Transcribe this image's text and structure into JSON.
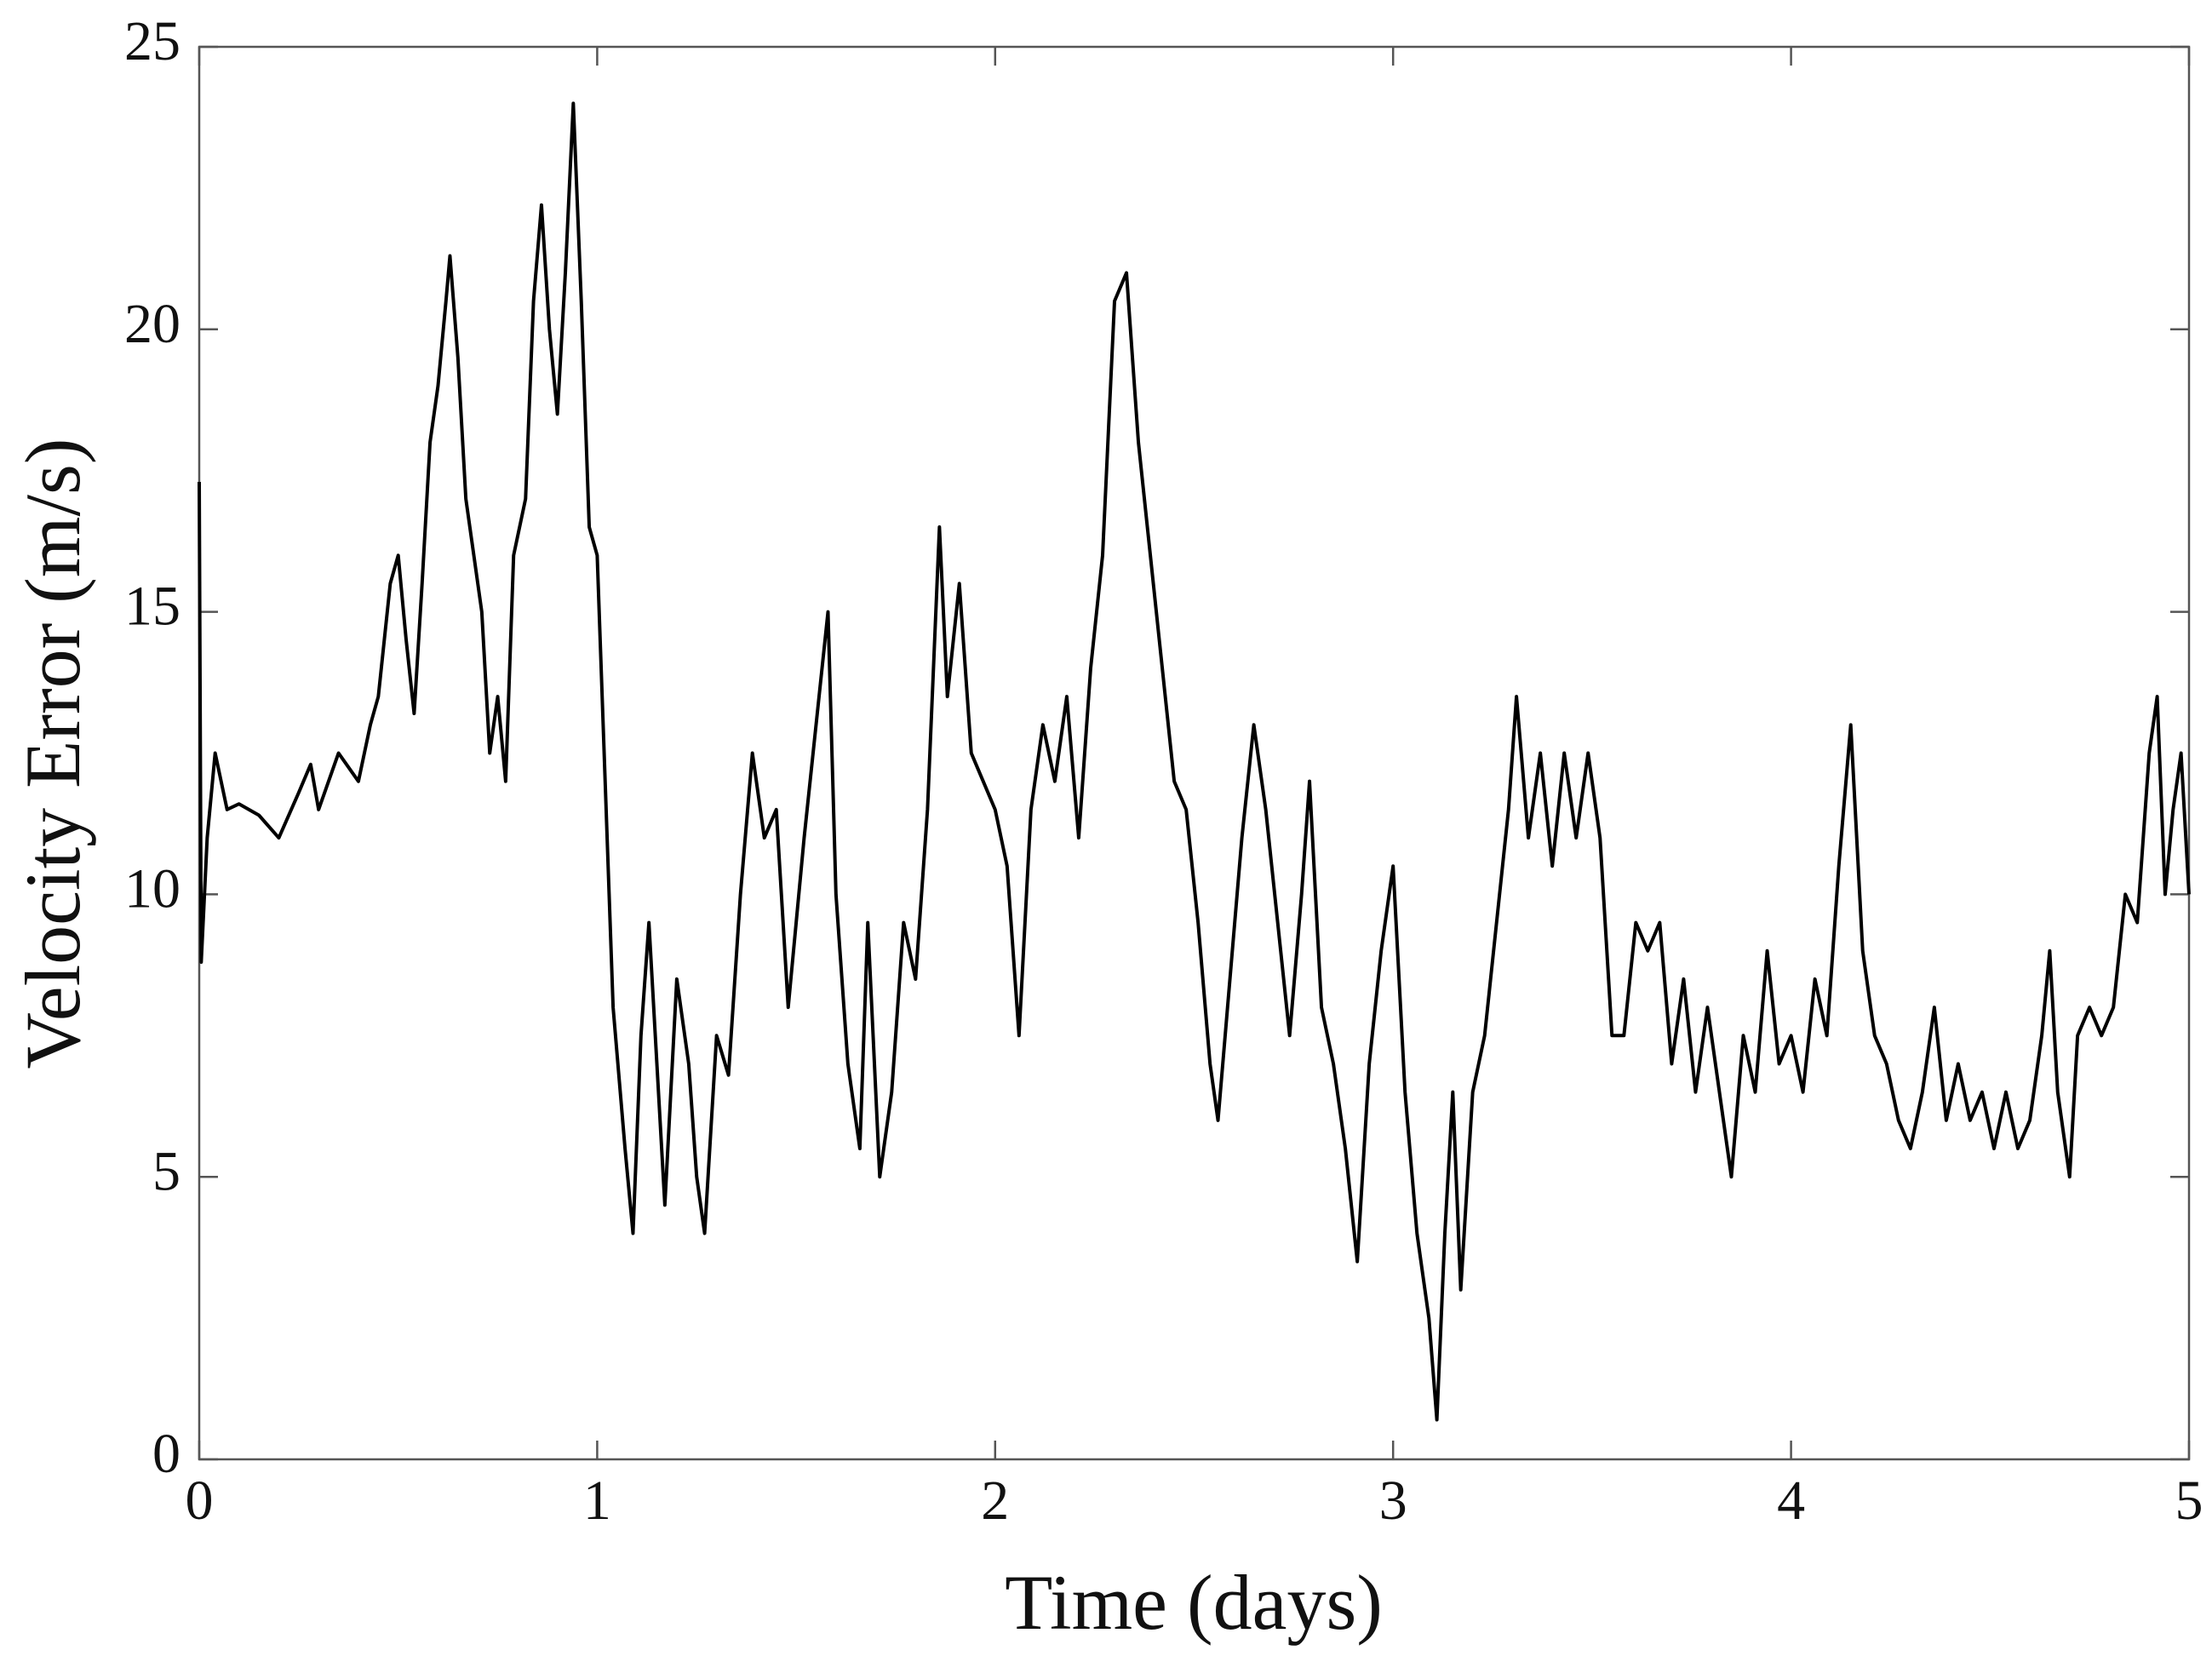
{
  "chart_data": {
    "type": "line",
    "x_label": "Time (days)",
    "y_label": "Velocity Error (m/s)",
    "xlim": [
      0,
      5
    ],
    "xticks": [
      0,
      1,
      2,
      3,
      4,
      5
    ],
    "ylim": [
      0,
      25
    ],
    "yticks": [
      0,
      5,
      10,
      15,
      20,
      25
    ],
    "x": [
      0,
      0.005,
      0.02,
      0.04,
      0.07,
      0.1,
      0.15,
      0.2,
      0.25,
      0.28,
      0.3,
      0.35,
      0.4,
      0.43,
      0.45,
      0.48,
      0.5,
      0.52,
      0.54,
      0.56,
      0.58,
      0.6,
      0.62,
      0.63,
      0.65,
      0.67,
      0.69,
      0.71,
      0.73,
      0.75,
      0.77,
      0.79,
      0.82,
      0.84,
      0.86,
      0.88,
      0.9,
      0.92,
      0.94,
      0.96,
      0.98,
      1.0,
      1.02,
      1.04,
      1.07,
      1.09,
      1.11,
      1.13,
      1.15,
      1.17,
      1.2,
      1.23,
      1.25,
      1.27,
      1.3,
      1.33,
      1.36,
      1.39,
      1.42,
      1.45,
      1.48,
      1.52,
      1.55,
      1.58,
      1.6,
      1.63,
      1.66,
      1.68,
      1.71,
      1.74,
      1.77,
      1.8,
      1.83,
      1.86,
      1.88,
      1.91,
      1.94,
      1.97,
      2.0,
      2.03,
      2.06,
      2.09,
      2.12,
      2.15,
      2.18,
      2.21,
      2.24,
      2.27,
      2.3,
      2.33,
      2.36,
      2.39,
      2.42,
      2.45,
      2.48,
      2.51,
      2.54,
      2.56,
      2.59,
      2.62,
      2.65,
      2.68,
      2.71,
      2.74,
      2.77,
      2.79,
      2.82,
      2.85,
      2.88,
      2.91,
      2.94,
      2.97,
      3.0,
      3.03,
      3.06,
      3.09,
      3.11,
      3.13,
      3.15,
      3.17,
      3.2,
      3.23,
      3.26,
      3.29,
      3.31,
      3.34,
      3.37,
      3.4,
      3.43,
      3.46,
      3.49,
      3.52,
      3.55,
      3.58,
      3.61,
      3.64,
      3.67,
      3.7,
      3.73,
      3.76,
      3.79,
      3.82,
      3.85,
      3.88,
      3.91,
      3.94,
      3.97,
      4.0,
      4.03,
      4.06,
      4.09,
      4.12,
      4.15,
      4.18,
      4.21,
      4.24,
      4.27,
      4.3,
      4.33,
      4.36,
      4.39,
      4.42,
      4.45,
      4.48,
      4.51,
      4.54,
      4.57,
      4.6,
      4.63,
      4.65,
      4.67,
      4.7,
      4.72,
      4.75,
      4.78,
      4.81,
      4.84,
      4.87,
      4.9,
      4.92,
      4.94,
      4.96,
      4.98,
      5.0
    ],
    "series": [
      {
        "color": "#000000",
        "values": [
          17.3,
          8.8,
          11,
          12.5,
          11.5,
          11.6,
          11.4,
          11.0,
          11.8,
          12.3,
          11.5,
          12.5,
          12.0,
          13.0,
          13.5,
          15.5,
          16.0,
          14.5,
          13.2,
          15.5,
          18.0,
          19.0,
          20.5,
          21.3,
          19.5,
          17.0,
          16.0,
          15.0,
          12.5,
          13.5,
          12.0,
          16.0,
          17.0,
          20.5,
          22.2,
          20.0,
          18.5,
          21.0,
          24.0,
          20.5,
          16.5,
          16.0,
          12.0,
          8.0,
          5.5,
          4.0,
          7.5,
          9.5,
          7.0,
          4.5,
          8.5,
          7.0,
          5.0,
          4.0,
          7.5,
          6.8,
          10.0,
          12.5,
          11.0,
          11.5,
          8.0,
          11.0,
          13.0,
          15.0,
          10.0,
          7.0,
          5.5,
          9.5,
          5.0,
          6.5,
          9.5,
          8.5,
          11.5,
          16.5,
          13.5,
          15.5,
          12.5,
          12.0,
          11.5,
          10.5,
          7.5,
          11.5,
          13.0,
          12.0,
          13.5,
          11.0,
          14.0,
          16.0,
          20.5,
          21.0,
          18.0,
          16.0,
          14.0,
          12.0,
          11.5,
          9.5,
          7.0,
          6.0,
          8.5,
          11.0,
          13.0,
          11.5,
          9.5,
          7.5,
          10.0,
          12.0,
          8.0,
          7.0,
          5.5,
          3.5,
          7.0,
          9.0,
          10.5,
          6.5,
          4.0,
          2.5,
          0.7,
          4.0,
          6.5,
          3.0,
          6.5,
          7.5,
          9.5,
          11.5,
          13.5,
          11.0,
          12.5,
          10.5,
          12.5,
          11.0,
          12.5,
          11.0,
          7.5,
          7.5,
          9.5,
          9.0,
          9.5,
          7.0,
          8.5,
          6.5,
          8.0,
          6.5,
          5.0,
          7.5,
          6.5,
          9.0,
          7.0,
          7.5,
          6.5,
          8.5,
          7.5,
          10.5,
          13.0,
          9.0,
          7.5,
          7.0,
          6.0,
          5.5,
          6.5,
          8.0,
          6.0,
          7.0,
          6.0,
          6.5,
          5.5,
          6.5,
          5.5,
          6.0,
          7.5,
          9.0,
          6.5,
          5.0,
          7.5,
          8.0,
          7.5,
          8.0,
          10.0,
          9.5,
          12.5,
          13.5,
          10.0,
          11.5,
          12.5,
          10.0
        ]
      }
    ]
  }
}
